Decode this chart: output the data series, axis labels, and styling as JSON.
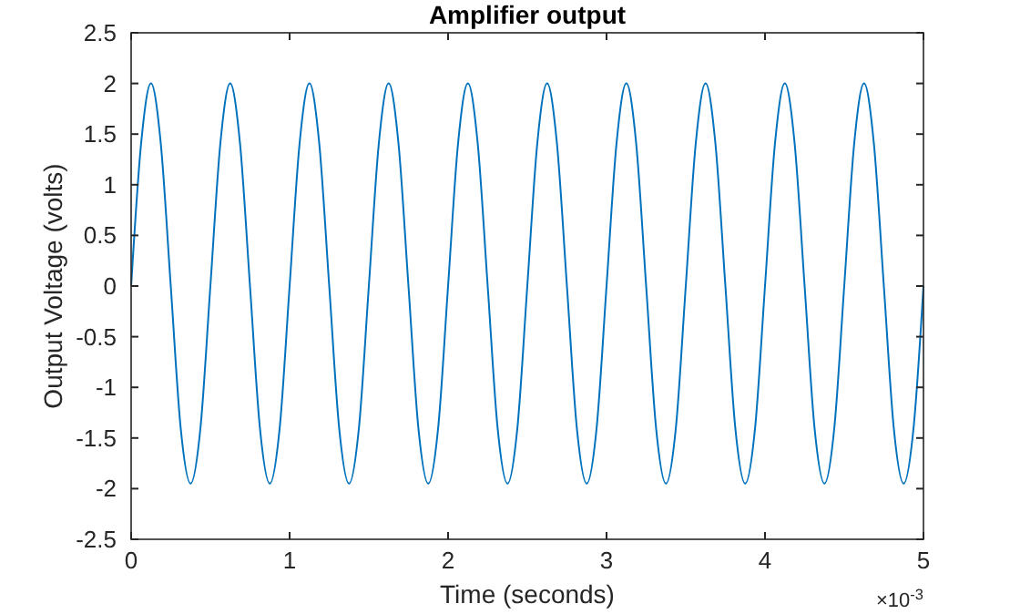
{
  "chart_data": {
    "type": "line",
    "title": "Amplifier output",
    "xlabel": "Time (seconds)",
    "ylabel": "Output Voltage (volts)",
    "annotations": [
      "×10$^{-3}$"
    ],
    "xlim": [
      0,
      5
    ],
    "xticks": [
      0,
      1,
      2,
      3,
      4,
      5
    ],
    "ylim": [
      -2.5,
      2.5
    ],
    "yticks": [
      -2.5,
      -2,
      -1.5,
      -1,
      -0.5,
      0,
      0.5,
      1,
      1.5,
      2,
      2.5
    ],
    "grid": false,
    "marker": "none",
    "line_style": "solid",
    "series": [
      {
        "color": "#0072bd",
        "x": [
          0,
          0.0625,
          0.125,
          0.1875,
          0.25,
          0.3125,
          0.375,
          0.4375,
          0.5,
          0.5625,
          0.625,
          0.6875,
          0.75,
          0.8125,
          0.875,
          0.9375,
          1,
          1.0625,
          1.125,
          1.1875,
          1.25,
          1.3125,
          1.375,
          1.4375,
          1.5,
          1.5625,
          1.625,
          1.6875,
          1.75,
          1.8125,
          1.875,
          1.9375,
          2,
          2.0625,
          2.125,
          2.1875,
          2.25,
          2.3125,
          2.375,
          2.4375,
          2.5,
          2.5625,
          2.625,
          2.6875,
          2.75,
          2.8125,
          2.875,
          2.9375,
          3,
          3.0625,
          3.125,
          3.1875,
          3.25,
          3.3125,
          3.375,
          3.4375,
          3.5,
          3.5625,
          3.625,
          3.6875,
          3.75,
          3.8125,
          3.875,
          3.9375,
          4,
          4.0625,
          4.125,
          4.1875,
          4.25,
          4.3125,
          4.375,
          4.4375,
          4.5,
          4.5625,
          4.625,
          4.6875,
          4.75,
          4.8125,
          4.875,
          4.9375,
          5
        ],
        "values": [
          0,
          1.4,
          2,
          1.4,
          0,
          -1.4,
          -1.95,
          -1.4,
          0,
          1.4,
          2,
          1.4,
          0,
          -1.4,
          -1.95,
          -1.4,
          0,
          1.4,
          2,
          1.4,
          0,
          -1.4,
          -1.95,
          -1.4,
          0,
          1.4,
          2,
          1.4,
          0,
          -1.4,
          -1.95,
          -1.4,
          0,
          1.4,
          2,
          1.4,
          0,
          -1.4,
          -1.95,
          -1.4,
          0,
          1.4,
          2,
          1.4,
          0,
          -1.4,
          -1.95,
          -1.4,
          0,
          1.4,
          2,
          1.4,
          0,
          -1.4,
          -1.95,
          -1.4,
          0,
          1.4,
          2,
          1.4,
          0,
          -1.4,
          -1.95,
          -1.4,
          0,
          1.4,
          2,
          1.4,
          0,
          -1.4,
          -1.95,
          -1.4,
          0,
          1.4,
          2,
          1.4,
          0,
          -1.4,
          -1.95,
          -1.4,
          0
        ]
      }
    ]
  }
}
